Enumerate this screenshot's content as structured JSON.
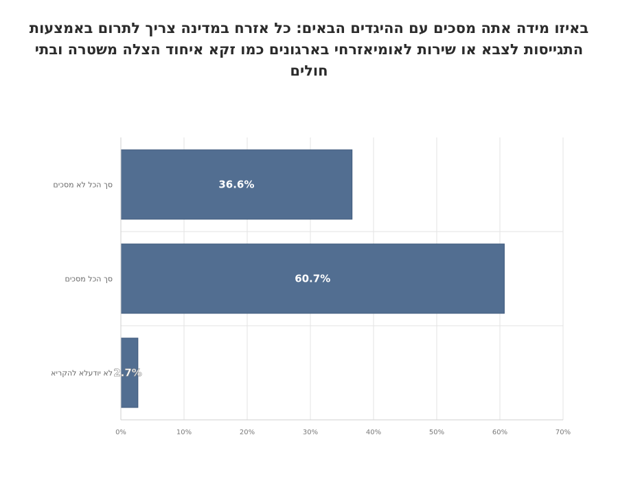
{
  "chart_data": {
    "type": "bar",
    "orientation": "horizontal",
    "title": "באיזו מידה אתה מסכים עם ההיגדים הבאים: כל אזרח במדינה צריך לתרום באמצעות התגייסות לצבא או שירות לאומיאזרחי בארגונים כמו זקא איחוד הצלה משטרה ובתי חולים",
    "categories": [
      "סך הכל לא מסכים",
      "סך הכל מסכים",
      "לא יודעלא להקריא"
    ],
    "values": [
      36.6,
      60.7,
      2.7
    ],
    "data_labels": [
      "36.6%",
      "60.7%",
      "2.7%"
    ],
    "xlabel": "",
    "ylabel": "",
    "xlim": [
      0,
      70
    ],
    "x_ticks": [
      0,
      10,
      20,
      30,
      40,
      50,
      60,
      70
    ],
    "x_tick_labels": [
      "0%",
      "10%",
      "20%",
      "30%",
      "40%",
      "50%",
      "60%",
      "70%"
    ],
    "grid": true,
    "legend": "none",
    "bar_color": "#526e91",
    "bar_edge_color": "#3f5a7c",
    "grid_color": "#e3e3e3"
  }
}
